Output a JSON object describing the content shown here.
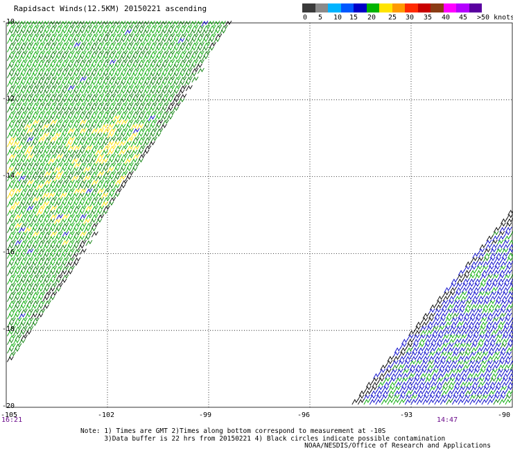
{
  "title": "Rapidsact Winds(12.5KM) 20150221 ascending",
  "legend": {
    "colors": [
      "#3a3a3a",
      "#8a8a8a",
      "#00b4ff",
      "#0058ff",
      "#0000c8",
      "#00b400",
      "#ffe400",
      "#ff9a00",
      "#ff2a00",
      "#c80000",
      "#8a3c14",
      "#ff00ff",
      "#b400ff",
      "#5a00a0"
    ],
    "labels": [
      "0",
      "5",
      "10",
      "15",
      "20",
      "25",
      "30",
      "35",
      "40",
      "45",
      ">50 knots"
    ]
  },
  "map": {
    "lon_range": [
      -105,
      -90
    ],
    "lat_range": [
      -20,
      -10
    ],
    "lat_ticks": [
      "-10",
      "-12",
      "-14",
      "-16",
      "-18",
      "-20"
    ],
    "lon_ticks": [
      "-105",
      "-102",
      "-99",
      "-96",
      "-93",
      "-90"
    ],
    "time_left": "16:21",
    "time_right": "14:47",
    "swath_colors": {
      "green": "#00a800",
      "darkgreen": "#007a00",
      "yellow": "#ffe000",
      "blue": "#0000c8",
      "black": "#000000"
    }
  },
  "notes": {
    "line1": "Note: 1) Times are GMT 2)Times along bottom correspond to measurement at -10S",
    "line2": "3)Data buffer is 22 hrs from 20150221 4) Black circles indicate possible contamination"
  },
  "credit": "NOAA/NESDIS/Office of Research and Applications"
}
